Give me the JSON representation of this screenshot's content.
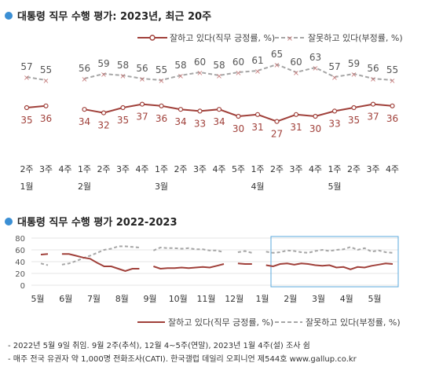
{
  "colors": {
    "approve": "#a0403a",
    "disapprove": "#a6a6a6",
    "bullet": "#3b8fd4",
    "grid": "#e4e4e4",
    "highlight": "#5aa9dd"
  },
  "legend": {
    "approve": "잘하고 있다(직무 긍정률, %)",
    "disapprove": "잘못하고 있다(부정률, %)"
  },
  "chart_data": [
    {
      "type": "line",
      "title": "대통령 직무 수행 평가: 2023년, 최근 20주",
      "x": [
        "2주",
        "3주",
        "4주",
        "1주",
        "2주",
        "3주",
        "4주",
        "1주",
        "2주",
        "3주",
        "4주",
        "5주",
        "1주",
        "2주",
        "3주",
        "4주",
        "1주",
        "2주",
        "3주",
        "4주"
      ],
      "month_labels": [
        {
          "index": 0,
          "label": "1월"
        },
        {
          "index": 3,
          "label": "2월"
        },
        {
          "index": 7,
          "label": "3월"
        },
        {
          "index": 12,
          "label": "4월"
        },
        {
          "index": 16,
          "label": "5월"
        }
      ],
      "series": [
        {
          "name": "잘하고 있다(직무 긍정률, %)",
          "values": [
            35,
            36,
            null,
            34,
            32,
            35,
            37,
            36,
            34,
            33,
            34,
            30,
            31,
            27,
            31,
            30,
            33,
            35,
            37,
            36
          ]
        },
        {
          "name": "잘못하고 있다(부정률, %)",
          "values": [
            57,
            55,
            null,
            56,
            59,
            58,
            56,
            55,
            58,
            60,
            58,
            60,
            61,
            65,
            60,
            63,
            57,
            59,
            56,
            55
          ]
        }
      ]
    },
    {
      "type": "line",
      "title": "대통령 직무 수행 평가 2022-2023",
      "yticks": [
        0,
        20,
        40,
        60,
        80
      ],
      "ylim": [
        0,
        80
      ],
      "x_labels": [
        "5월",
        "6월",
        "7월",
        "8월",
        "9월",
        "10월",
        "11월",
        "12월",
        "1월",
        "2월",
        "3월",
        "4월",
        "5월"
      ],
      "highlight_label_start": 8,
      "series": [
        {
          "name": "잘하고 있다(직무 긍정률, %)",
          "values": [
            52,
            53,
            null,
            53,
            53,
            50,
            47,
            45,
            38,
            32,
            32,
            28,
            24,
            28,
            28,
            null,
            32,
            28,
            29,
            29,
            30,
            29,
            30,
            31,
            30,
            33,
            36,
            null,
            37,
            36,
            36,
            null,
            34,
            32,
            36,
            37,
            35,
            37,
            36,
            34,
            33,
            34,
            30,
            31,
            27,
            31,
            30,
            33,
            35,
            37,
            36
          ]
        },
        {
          "name": "잘못하고 있다(부정률, %)",
          "values": [
            37,
            34,
            null,
            35,
            37,
            41,
            46,
            50,
            55,
            60,
            62,
            66,
            66,
            65,
            64,
            null,
            59,
            64,
            63,
            63,
            62,
            63,
            61,
            61,
            59,
            59,
            56,
            null,
            56,
            58,
            55,
            null,
            57,
            55,
            56,
            59,
            58,
            56,
            55,
            58,
            60,
            58,
            60,
            61,
            65,
            60,
            63,
            57,
            59,
            56,
            55
          ]
        }
      ]
    }
  ],
  "footnotes": [
    "- 2022년 5월 9일 취임. 9월 2주(추석), 12월 4~5주(연말), 2023년 1월 4주(설) 조사 쉼",
    "- 매주 전국 유권자 약 1,000명 전화조사(CATI). 한국갤럽 데일리 오피니언 제544호 www.gallup.co.kr"
  ]
}
